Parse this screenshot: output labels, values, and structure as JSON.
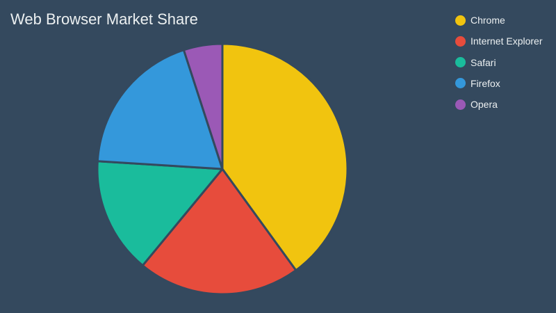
{
  "colors": {
    "background": "#34495e",
    "text": "#ecf0f1",
    "slice_border": "#34495e"
  },
  "chart_data": {
    "type": "pie",
    "title": "Web Browser Market Share",
    "legend_position": "top-right",
    "start_angle_deg": 0,
    "direction": "clockwise",
    "slices": [
      {
        "label": "Chrome",
        "value": 40,
        "color": "#f1c40f"
      },
      {
        "label": "Internet Explorer",
        "value": 21,
        "color": "#e74c3c"
      },
      {
        "label": "Safari",
        "value": 15,
        "color": "#1abc9c"
      },
      {
        "label": "Firefox",
        "value": 19,
        "color": "#3498db"
      },
      {
        "label": "Opera",
        "value": 5,
        "color": "#9b59b6"
      }
    ]
  }
}
